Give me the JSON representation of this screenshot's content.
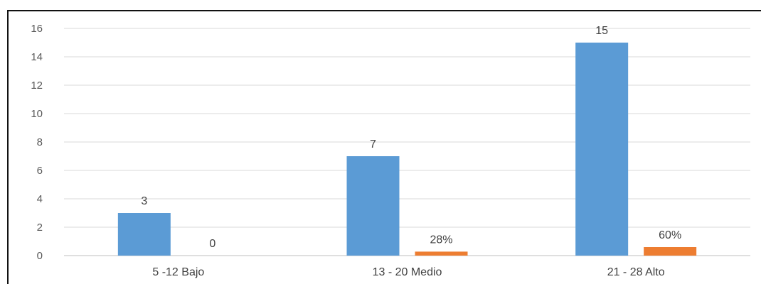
{
  "chart_data": {
    "type": "bar",
    "categories": [
      "5 -12 Bajo",
      "13 - 20 Medio",
      "21 - 28 Alto"
    ],
    "series": [
      {
        "values": [
          3,
          7,
          15
        ],
        "labels": [
          "3",
          "7",
          "15"
        ],
        "color": "#5B9BD5"
      },
      {
        "values": [
          0,
          0.28,
          0.6
        ],
        "labels": [
          "0",
          "28%",
          "60%"
        ],
        "color": "#ED7D31"
      }
    ],
    "y_ticks": [
      "0",
      "2",
      "4",
      "6",
      "8",
      "10",
      "12",
      "14",
      "16"
    ],
    "ylim": [
      0,
      16
    ],
    "grid": true,
    "legend": "none"
  }
}
